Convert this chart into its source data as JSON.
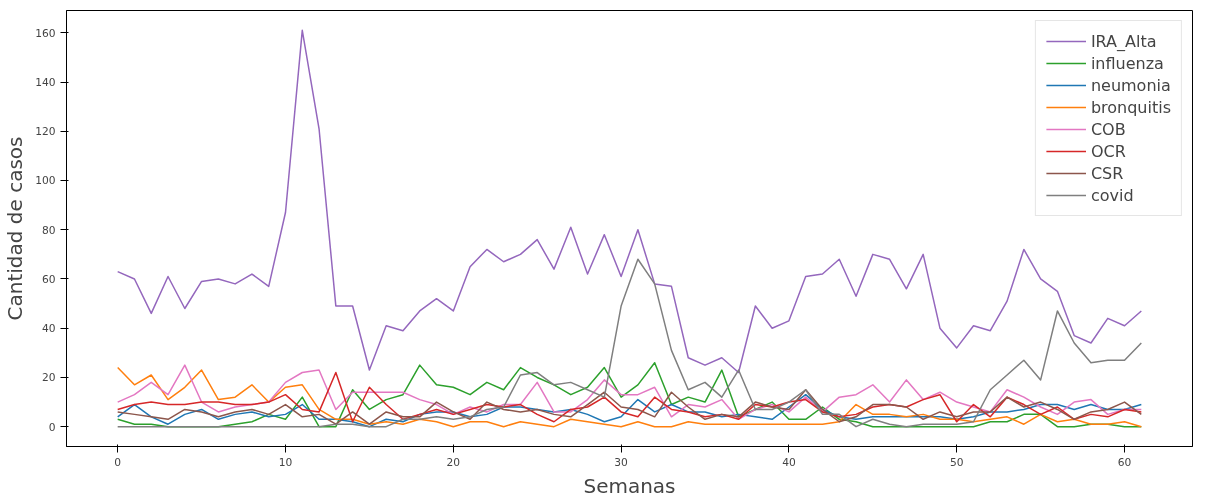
{
  "chart_data": {
    "type": "line",
    "xlabel": "Semanas",
    "ylabel": "Cantidad de casos",
    "x": [
      0,
      1,
      2,
      3,
      4,
      5,
      6,
      7,
      8,
      9,
      10,
      11,
      12,
      13,
      14,
      15,
      16,
      17,
      18,
      19,
      20,
      21,
      22,
      23,
      24,
      25,
      26,
      27,
      28,
      29,
      30,
      31,
      32,
      33,
      34,
      35,
      36,
      37,
      38,
      39,
      40,
      41,
      42,
      43,
      44,
      45,
      46,
      47,
      48,
      49,
      50,
      51,
      52,
      53,
      54,
      55,
      56,
      57,
      58,
      59,
      60,
      61
    ],
    "xlim": [
      -3.05,
      64.05
    ],
    "xticks": [
      0,
      10,
      20,
      30,
      40,
      50,
      60
    ],
    "ylim": [
      -8.05,
      169.05
    ],
    "yticks": [
      0,
      20,
      40,
      60,
      80,
      100,
      120,
      140,
      160
    ],
    "grid": false,
    "legend": "top right",
    "series": [
      {
        "name": "IRA_Alta",
        "color": "#9467bd",
        "values": [
          63,
          60,
          46,
          61,
          48,
          59,
          60,
          58,
          62,
          57,
          87,
          161,
          121,
          49,
          49,
          23,
          41,
          39,
          47,
          52,
          47,
          65,
          72,
          67,
          70,
          76,
          64,
          81,
          62,
          78,
          61,
          80,
          58,
          57,
          28,
          25,
          28,
          22,
          49,
          40,
          43,
          61,
          62,
          68,
          53,
          70,
          68,
          56,
          70,
          40,
          32,
          41,
          39,
          51,
          72,
          60,
          55,
          37,
          34,
          44,
          41,
          47
        ]
      },
      {
        "name": "influenza",
        "color": "#2ca02c",
        "values": [
          3,
          1,
          1,
          0,
          0,
          0,
          0,
          1,
          2,
          5,
          3,
          12,
          0,
          0,
          15,
          7,
          11,
          13,
          25,
          17,
          16,
          13,
          18,
          15,
          24,
          20,
          17,
          13,
          16,
          24,
          12,
          17,
          26,
          9,
          12,
          10,
          23,
          4,
          7,
          10,
          3,
          3,
          8,
          3,
          2,
          0,
          0,
          0,
          0,
          0,
          0,
          0,
          2,
          2,
          5,
          5,
          0,
          0,
          1,
          1,
          0,
          0
        ]
      },
      {
        "name": "neumonia",
        "color": "#1f77b4",
        "values": [
          4,
          9,
          4,
          1,
          5,
          7,
          3,
          5,
          6,
          4,
          5,
          9,
          3,
          3,
          2,
          0,
          3,
          2,
          5,
          6,
          6,
          4,
          5,
          8,
          8,
          7,
          6,
          7,
          5,
          2,
          4,
          11,
          6,
          9,
          6,
          6,
          4,
          5,
          4,
          3,
          8,
          13,
          7,
          4,
          3,
          4,
          4,
          4,
          4,
          4,
          3,
          4,
          6,
          6,
          7,
          9,
          9,
          7,
          9,
          7,
          7,
          9
        ]
      },
      {
        "name": "bronquitis",
        "color": "#ff7f0e",
        "values": [
          24,
          17,
          21,
          11,
          16,
          23,
          11,
          12,
          17,
          10,
          16,
          17,
          7,
          3,
          3,
          1,
          2,
          1,
          3,
          2,
          0,
          2,
          2,
          0,
          2,
          1,
          0,
          3,
          2,
          1,
          0,
          2,
          0,
          0,
          2,
          1,
          1,
          1,
          1,
          1,
          1,
          1,
          1,
          2,
          9,
          5,
          5,
          4,
          5,
          3,
          3,
          2,
          3,
          4,
          1,
          5,
          2,
          3,
          1,
          1,
          2,
          0
        ]
      },
      {
        "name": "COB",
        "color": "#e377c2",
        "values": [
          10,
          13,
          18,
          13,
          25,
          10,
          6,
          8,
          9,
          10,
          18,
          22,
          23,
          7,
          14,
          14,
          14,
          14,
          11,
          9,
          5,
          8,
          6,
          9,
          9,
          18,
          6,
          6,
          11,
          19,
          13,
          13,
          16,
          4,
          9,
          8,
          11,
          3,
          7,
          9,
          6,
          12,
          6,
          12,
          13,
          17,
          10,
          19,
          11,
          14,
          10,
          8,
          6,
          15,
          12,
          8,
          5,
          10,
          11,
          5,
          7,
          7
        ]
      },
      {
        "name": "OCR",
        "color": "#d62728",
        "values": [
          7,
          9,
          10,
          9,
          9,
          10,
          10,
          9,
          9,
          10,
          13,
          7,
          6,
          22,
          2,
          16,
          9,
          3,
          5,
          7,
          5,
          7,
          9,
          8,
          9,
          5,
          2,
          7,
          8,
          12,
          6,
          4,
          12,
          7,
          6,
          4,
          5,
          3,
          9,
          8,
          10,
          11,
          6,
          4,
          5,
          8,
          9,
          8,
          11,
          13,
          2,
          9,
          4,
          12,
          9,
          5,
          8,
          3,
          5,
          4,
          7,
          6
        ]
      },
      {
        "name": "CSR",
        "color": "#8c564b",
        "values": [
          6,
          5,
          4,
          3,
          7,
          6,
          4,
          6,
          7,
          5,
          9,
          4,
          5,
          1,
          6,
          1,
          6,
          4,
          4,
          10,
          6,
          3,
          10,
          7,
          6,
          7,
          5,
          4,
          9,
          14,
          8,
          7,
          4,
          14,
          8,
          3,
          5,
          4,
          10,
          8,
          7,
          15,
          7,
          2,
          4,
          9,
          9,
          8,
          3,
          6,
          4,
          6,
          6,
          12,
          8,
          10,
          7,
          3,
          6,
          7,
          10,
          5
        ]
      },
      {
        "name": "covid",
        "color": "#7f7f7f",
        "values": [
          0,
          0,
          0,
          0,
          0,
          0,
          0,
          0,
          0,
          0,
          0,
          0,
          0,
          1,
          1,
          0,
          0,
          3,
          3,
          4,
          3,
          4,
          7,
          8,
          21,
          22,
          17,
          18,
          15,
          12,
          49,
          68,
          58,
          31,
          15,
          18,
          12,
          23,
          7,
          7,
          10,
          15,
          5,
          5,
          0,
          3,
          1,
          0,
          1,
          1,
          1,
          2,
          15,
          21,
          27,
          19,
          47,
          34,
          26,
          27,
          27,
          34
        ]
      }
    ]
  }
}
